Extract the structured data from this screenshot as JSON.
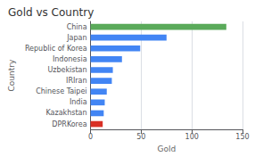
{
  "chart_data": {
    "type": "bar",
    "orientation": "horizontal",
    "title": "Gold vs Country",
    "xlabel": "Gold",
    "ylabel": "Country",
    "categories": [
      "DPRKorea",
      "Kazakhstan",
      "India",
      "Chinese Taipei",
      "IRIran",
      "Uzbekistan",
      "Indonesia",
      "Republic of Korea",
      "Japan",
      "China"
    ],
    "values": [
      12,
      13,
      14,
      16,
      21,
      22,
      31,
      49,
      75,
      134
    ],
    "colors": [
      "#d93025",
      "#4285f4",
      "#4285f4",
      "#4285f4",
      "#4285f4",
      "#4285f4",
      "#4285f4",
      "#4285f4",
      "#4285f4",
      "#5aaa5a"
    ],
    "xlim": [
      0,
      150
    ],
    "xticks": [
      0,
      50,
      100,
      150
    ],
    "grid": true
  }
}
